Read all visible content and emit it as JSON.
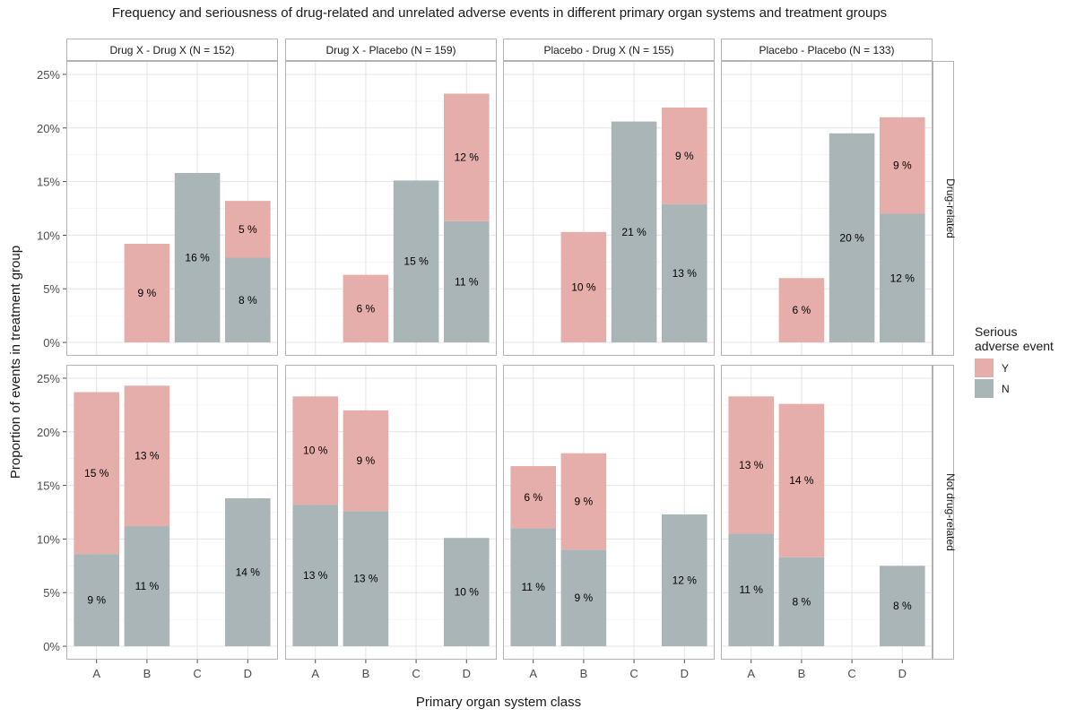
{
  "chart_data": {
    "type": "bar",
    "stacked": true,
    "title": "Frequency and seriousness of drug-related and unrelated adverse events in different primary organ systems and treatment groups",
    "xlabel": "Primary organ system class",
    "ylabel": "Proportion of events in treatment group",
    "ylim": [
      0,
      25
    ],
    "y_ticks": [
      "0%",
      "5%",
      "10%",
      "15%",
      "20%",
      "25%"
    ],
    "grid": true,
    "categories": [
      "A",
      "B",
      "C",
      "D"
    ],
    "facet_columns": [
      "Drug X - Drug X (N = 152)",
      "Drug X - Placebo (N = 159)",
      "Placebo - Drug X (N = 155)",
      "Placebo - Placebo (N = 133)"
    ],
    "facet_rows": [
      "Drug-related",
      "Not drug-related"
    ],
    "legend": {
      "title_lines": [
        "Serious",
        "adverse event"
      ],
      "position": "right",
      "entries": [
        {
          "key": "Y",
          "label": "Y",
          "color": "#e5aeaa"
        },
        {
          "key": "N",
          "label": "N",
          "color": "#a9b5b6"
        }
      ]
    },
    "panels": [
      {
        "row": 0,
        "col": 0,
        "bars": [
          {
            "category": "A",
            "segments": []
          },
          {
            "category": "B",
            "segments": [
              {
                "serious": "Y",
                "value": 9.2,
                "label": "9 %"
              }
            ]
          },
          {
            "category": "C",
            "segments": [
              {
                "serious": "N",
                "value": 15.8,
                "label": "16 %"
              }
            ]
          },
          {
            "category": "D",
            "segments": [
              {
                "serious": "N",
                "value": 7.9,
                "label": "8 %"
              },
              {
                "serious": "Y",
                "value": 5.3,
                "label": "5 %"
              }
            ]
          }
        ]
      },
      {
        "row": 0,
        "col": 1,
        "bars": [
          {
            "category": "A",
            "segments": []
          },
          {
            "category": "B",
            "segments": [
              {
                "serious": "Y",
                "value": 6.3,
                "label": "6 %"
              }
            ]
          },
          {
            "category": "C",
            "segments": [
              {
                "serious": "N",
                "value": 15.1,
                "label": "15 %"
              }
            ]
          },
          {
            "category": "D",
            "segments": [
              {
                "serious": "N",
                "value": 11.3,
                "label": "11 %"
              },
              {
                "serious": "Y",
                "value": 11.9,
                "label": "12 %"
              }
            ]
          }
        ]
      },
      {
        "row": 0,
        "col": 2,
        "bars": [
          {
            "category": "A",
            "segments": []
          },
          {
            "category": "B",
            "segments": [
              {
                "serious": "Y",
                "value": 10.3,
                "label": "10 %"
              }
            ]
          },
          {
            "category": "C",
            "segments": [
              {
                "serious": "N",
                "value": 20.6,
                "label": "21 %"
              }
            ]
          },
          {
            "category": "D",
            "segments": [
              {
                "serious": "N",
                "value": 12.9,
                "label": "13 %"
              },
              {
                "serious": "Y",
                "value": 9.0,
                "label": "9 %"
              }
            ]
          }
        ]
      },
      {
        "row": 0,
        "col": 3,
        "bars": [
          {
            "category": "A",
            "segments": []
          },
          {
            "category": "B",
            "segments": [
              {
                "serious": "Y",
                "value": 6.0,
                "label": "6 %"
              }
            ]
          },
          {
            "category": "C",
            "segments": [
              {
                "serious": "N",
                "value": 19.5,
                "label": "20 %"
              }
            ]
          },
          {
            "category": "D",
            "segments": [
              {
                "serious": "N",
                "value": 12.0,
                "label": "12 %"
              },
              {
                "serious": "Y",
                "value": 9.0,
                "label": "9 %"
              }
            ]
          }
        ]
      },
      {
        "row": 1,
        "col": 0,
        "bars": [
          {
            "category": "A",
            "segments": [
              {
                "serious": "N",
                "value": 8.6,
                "label": "9 %"
              },
              {
                "serious": "Y",
                "value": 15.1,
                "label": "15 %"
              }
            ]
          },
          {
            "category": "B",
            "segments": [
              {
                "serious": "N",
                "value": 11.2,
                "label": "11 %"
              },
              {
                "serious": "Y",
                "value": 13.1,
                "label": "13 %"
              }
            ]
          },
          {
            "category": "C",
            "segments": []
          },
          {
            "category": "D",
            "segments": [
              {
                "serious": "N",
                "value": 13.8,
                "label": "14 %"
              }
            ]
          }
        ]
      },
      {
        "row": 1,
        "col": 1,
        "bars": [
          {
            "category": "A",
            "segments": [
              {
                "serious": "N",
                "value": 13.2,
                "label": "13 %"
              },
              {
                "serious": "Y",
                "value": 10.1,
                "label": "10 %"
              }
            ]
          },
          {
            "category": "B",
            "segments": [
              {
                "serious": "N",
                "value": 12.6,
                "label": "13 %"
              },
              {
                "serious": "Y",
                "value": 9.4,
                "label": "9 %"
              }
            ]
          },
          {
            "category": "C",
            "segments": []
          },
          {
            "category": "D",
            "segments": [
              {
                "serious": "N",
                "value": 10.1,
                "label": "10 %"
              }
            ]
          }
        ]
      },
      {
        "row": 1,
        "col": 2,
        "bars": [
          {
            "category": "A",
            "segments": [
              {
                "serious": "N",
                "value": 11.0,
                "label": "11 %"
              },
              {
                "serious": "Y",
                "value": 5.8,
                "label": "6 %"
              }
            ]
          },
          {
            "category": "B",
            "segments": [
              {
                "serious": "N",
                "value": 9.0,
                "label": "9 %"
              },
              {
                "serious": "Y",
                "value": 9.0,
                "label": "9 %"
              }
            ]
          },
          {
            "category": "C",
            "segments": []
          },
          {
            "category": "D",
            "segments": [
              {
                "serious": "N",
                "value": 12.3,
                "label": "12 %"
              }
            ]
          }
        ]
      },
      {
        "row": 1,
        "col": 3,
        "bars": [
          {
            "category": "A",
            "segments": [
              {
                "serious": "N",
                "value": 10.5,
                "label": "11 %"
              },
              {
                "serious": "Y",
                "value": 12.8,
                "label": "13 %"
              }
            ]
          },
          {
            "category": "B",
            "segments": [
              {
                "serious": "N",
                "value": 8.3,
                "label": "8 %"
              },
              {
                "serious": "Y",
                "value": 14.3,
                "label": "14 %"
              }
            ]
          },
          {
            "category": "C",
            "segments": []
          },
          {
            "category": "D",
            "segments": [
              {
                "serious": "N",
                "value": 7.5,
                "label": "8 %"
              }
            ]
          }
        ]
      }
    ]
  }
}
